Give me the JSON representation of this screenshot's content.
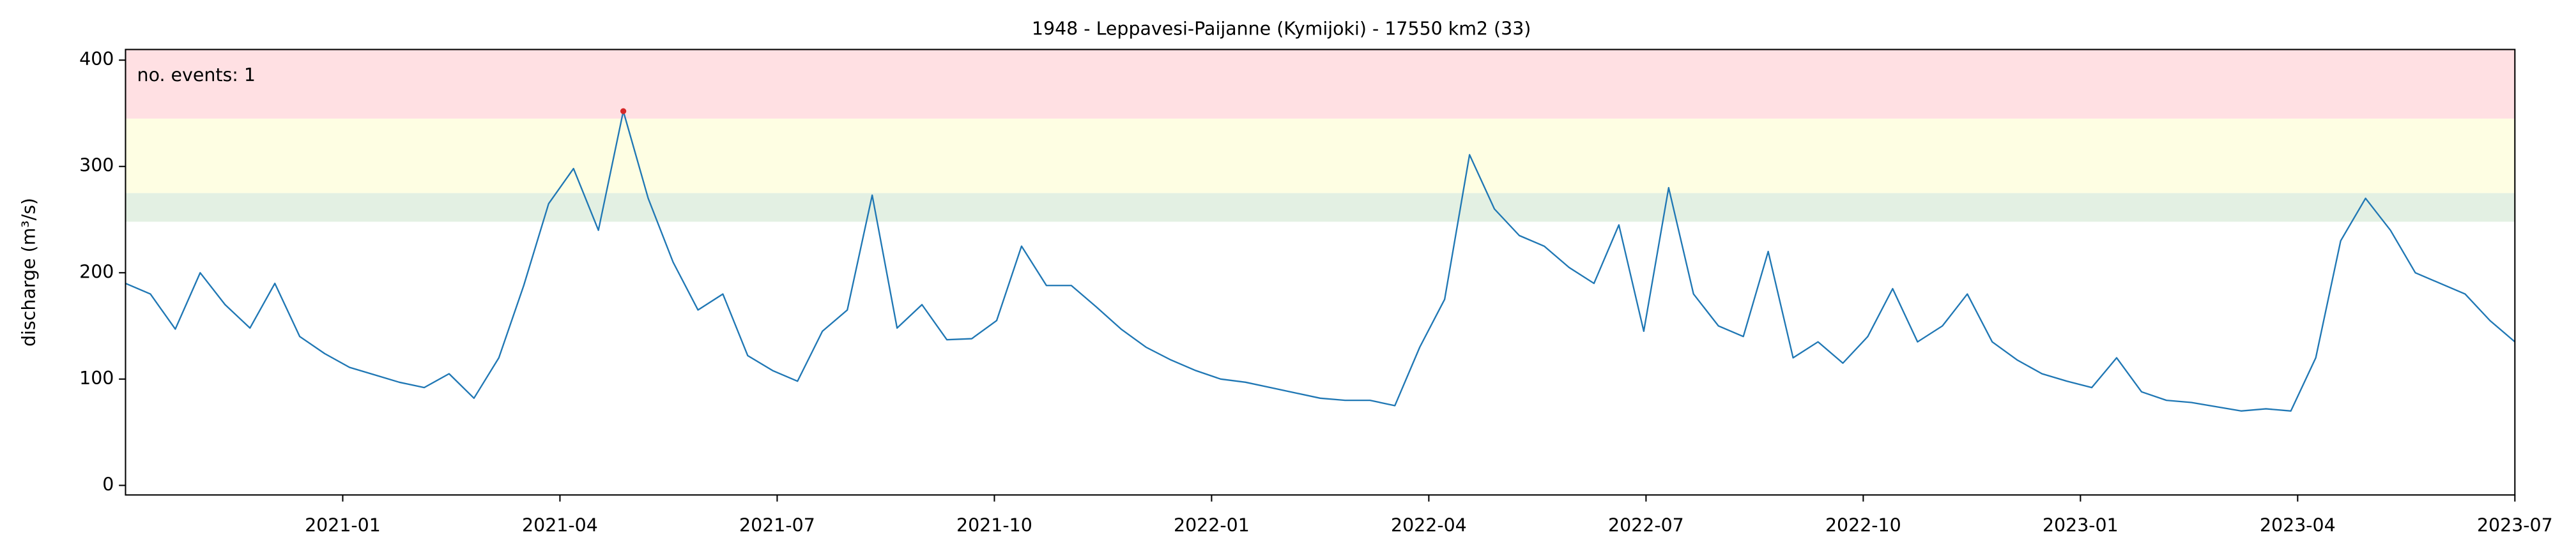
{
  "chart_data": {
    "type": "line",
    "title": "1948 - Leppavesi-Paijanne (Kymijoki) - 17550 km2 (33)",
    "ylabel": "discharge (m³/s)",
    "annotation": "no. events: 1",
    "xlim": [
      "2020-10",
      "2023-07"
    ],
    "xticks": [
      "2021-01",
      "2021-04",
      "2021-07",
      "2021-10",
      "2022-01",
      "2022-04",
      "2022-07",
      "2022-10",
      "2023-01",
      "2023-04",
      "2023-07"
    ],
    "ylim": [
      -9,
      410
    ],
    "yticks": [
      0,
      100,
      200,
      300,
      400
    ],
    "bands": [
      {
        "from": 248,
        "to": 275,
        "color": "#e3f0e3"
      },
      {
        "from": 275,
        "to": 345,
        "color": "#fefee3"
      },
      {
        "from": 345,
        "to": 410,
        "color": "#ffe0e3"
      }
    ],
    "event_color": "#d62728",
    "annotation_color": "#d00000",
    "series": [
      {
        "name": "discharge",
        "color": "#1f77b4",
        "values": [
          190,
          180,
          147,
          200,
          170,
          148,
          190,
          140,
          124,
          111,
          104,
          97,
          92,
          105,
          82,
          120,
          188,
          265,
          298,
          240,
          352,
          270,
          210,
          165,
          180,
          122,
          108,
          98,
          145,
          165,
          273,
          148,
          170,
          137,
          138,
          155,
          225,
          188,
          188,
          168,
          147,
          130,
          118,
          108,
          100,
          97,
          92,
          87,
          82,
          80,
          80,
          75,
          130,
          175,
          311,
          260,
          235,
          225,
          205,
          190,
          245,
          145,
          280,
          180,
          150,
          140,
          220,
          120,
          135,
          115,
          140,
          185,
          135,
          150,
          180,
          135,
          118,
          105,
          98,
          92,
          120,
          88,
          80,
          78,
          74,
          70,
          72,
          70,
          120,
          230,
          270,
          240,
          200,
          190,
          180,
          155,
          135
        ]
      }
    ]
  }
}
